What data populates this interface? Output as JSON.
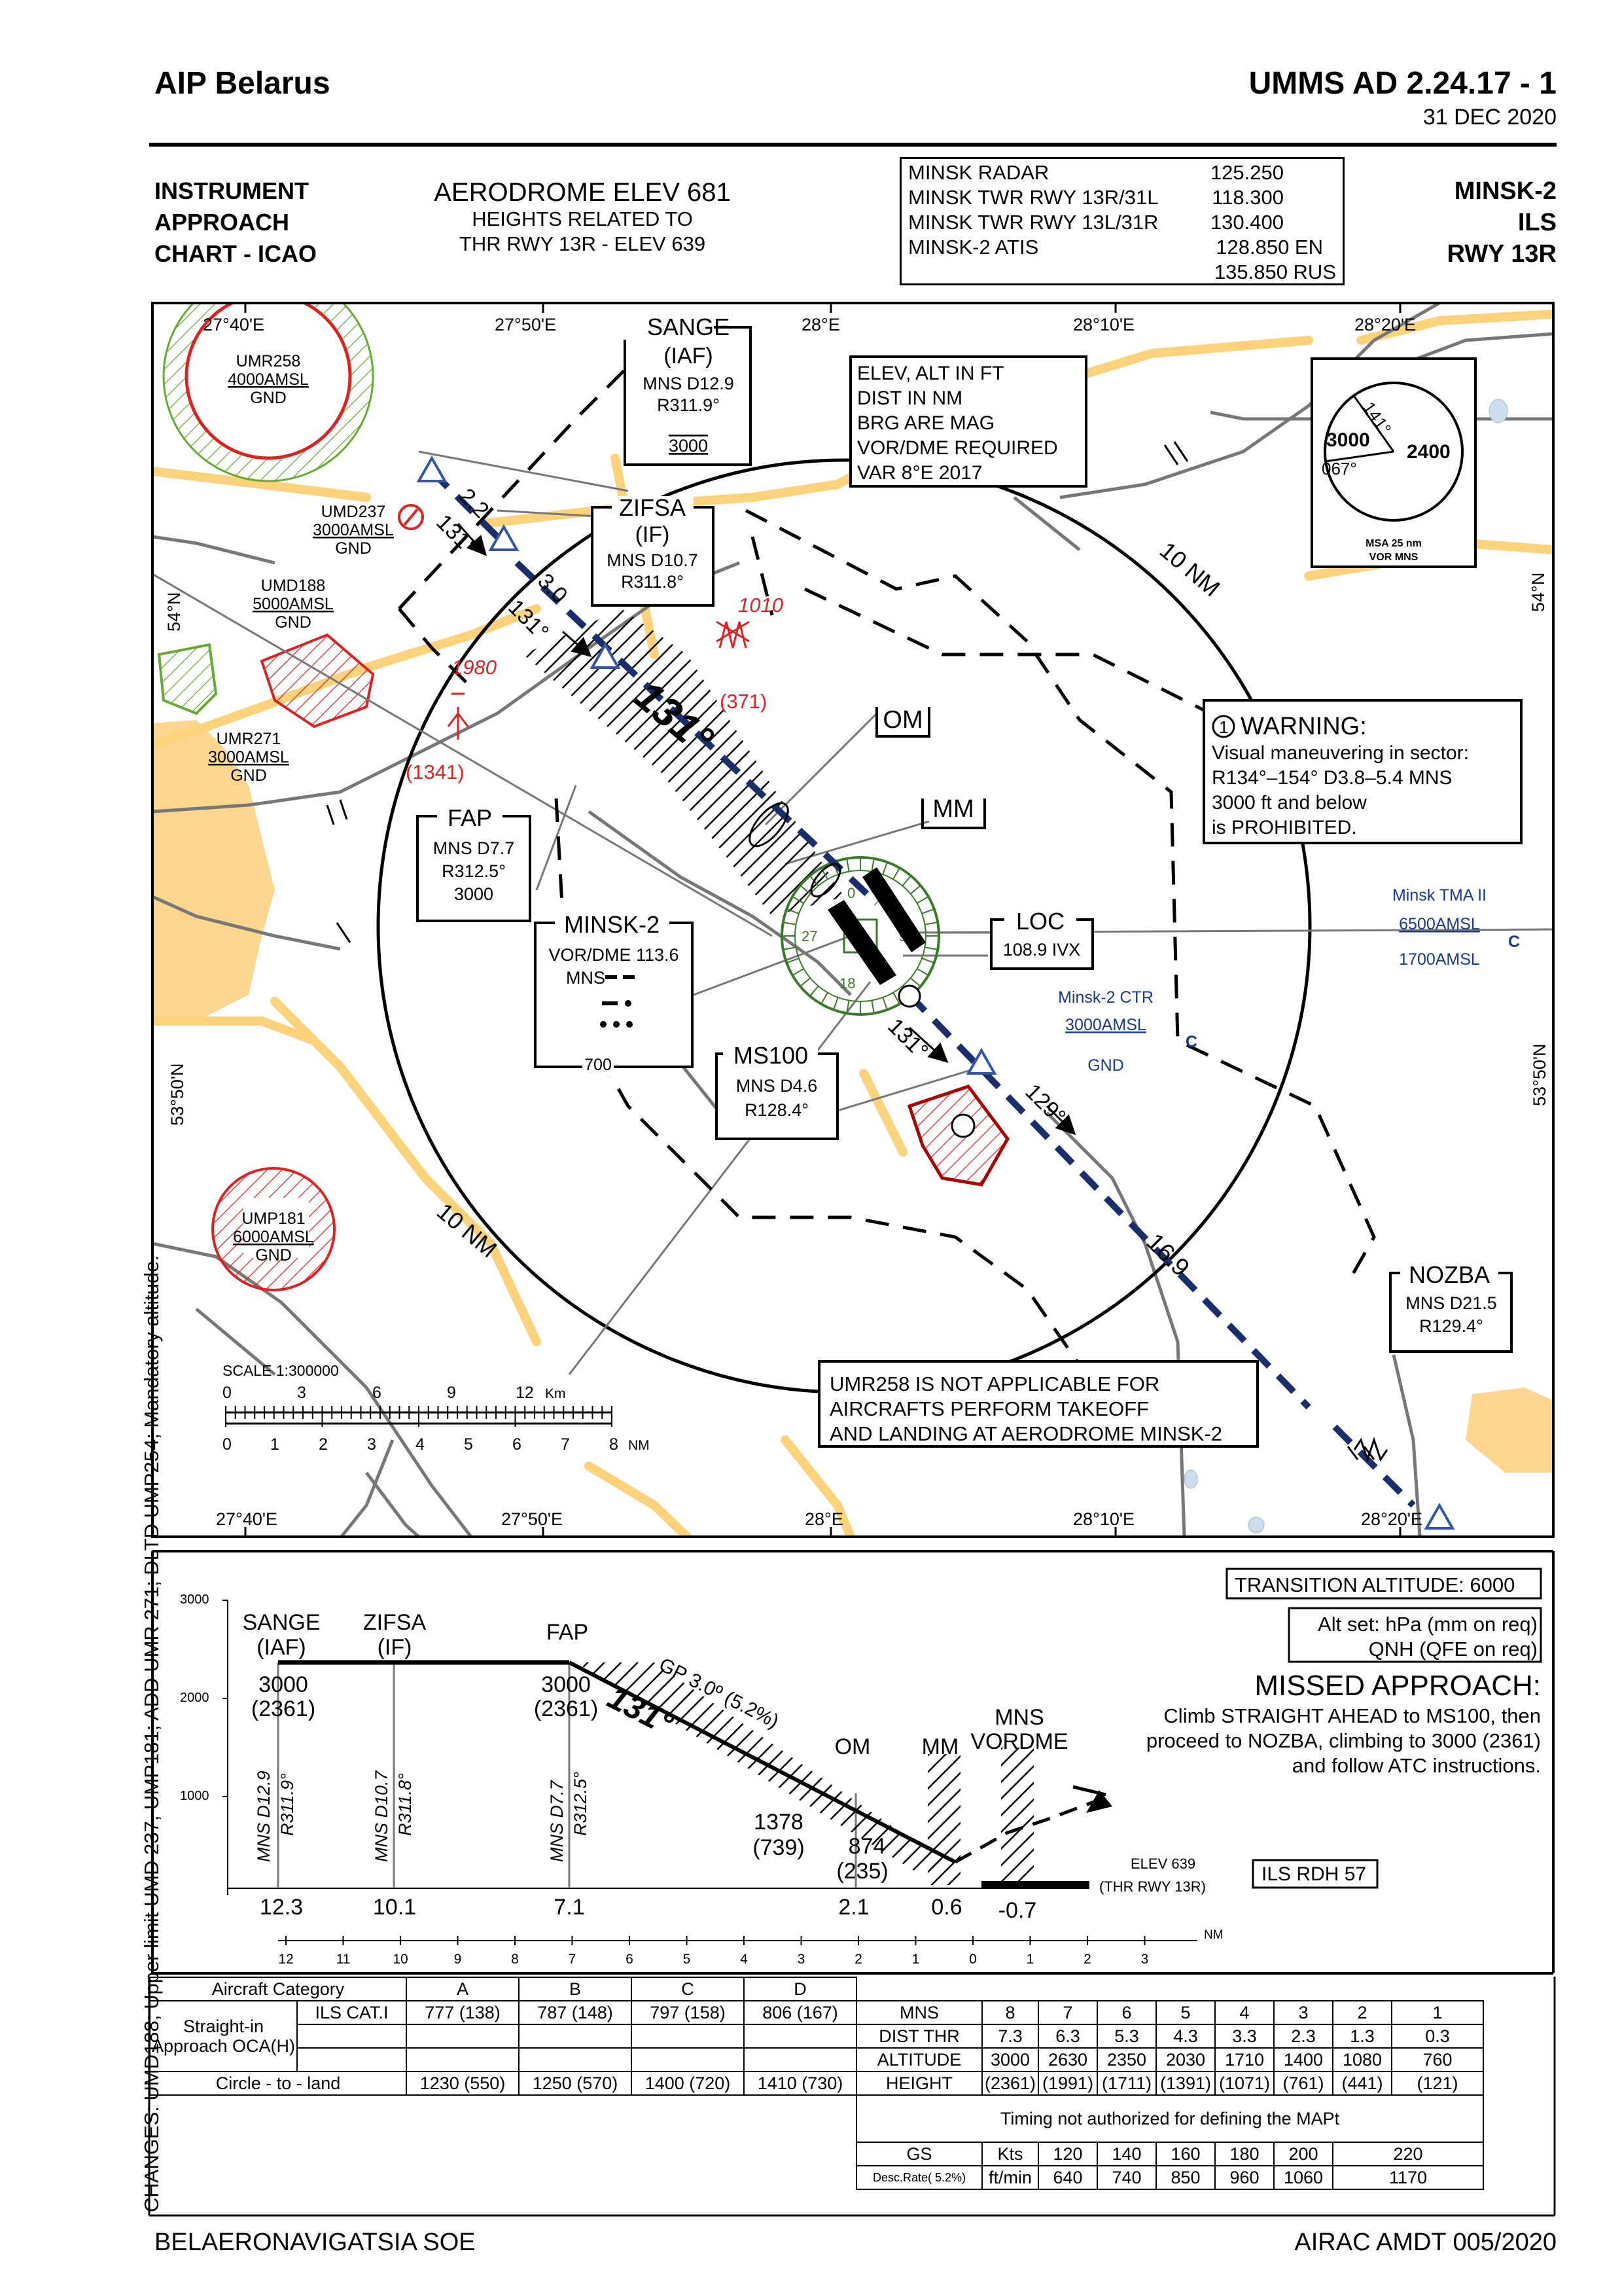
{
  "header": {
    "left_title": "AIP Belarus",
    "right_title": "UMMS AD 2.24.17 - 1",
    "date": "31 DEC 2020"
  },
  "title_block": {
    "chart_type": [
      "INSTRUMENT",
      "APPROACH",
      "CHART - ICAO"
    ],
    "aerodrome_elev": "AERODROME ELEV 681",
    "heights_note_1": "HEIGHTS RELATED TO",
    "heights_note_2": "THR RWY 13R - ELEV 639",
    "frequencies": [
      {
        "name": "MINSK  RADAR",
        "freq": "125.250"
      },
      {
        "name": "MINSK TWR RWY 13R/31L",
        "freq": "118.300"
      },
      {
        "name": "MINSK TWR RWY 13L/31R",
        "freq": "130.400"
      },
      {
        "name": "MINSK-2 ATIS",
        "freq": "128.850 EN"
      },
      {
        "name": "",
        "freq": "135.850 RUS"
      }
    ],
    "chart_id": [
      "MINSK-2",
      "ILS",
      "RWY 13R"
    ]
  },
  "plan": {
    "lon_labels": [
      "27°40'E",
      "27°50'E",
      "28°E",
      "28°10'E",
      "28°20'E"
    ],
    "lat_labels": [
      "54°N",
      "53°50'N"
    ],
    "notes_box": [
      "ELEV, ALT IN FT",
      "DIST IN NM",
      "BRG ARE MAG",
      "VOR/DME REQUIRED",
      "VAR 8°E 2017"
    ],
    "msa": {
      "bearing_1": "141°",
      "bearing_2": "067°",
      "alt_1": "3000",
      "alt_2": "2400",
      "label": "MSA 25 nm",
      "sub": "VOR MNS"
    },
    "sange": {
      "name": "SANGE",
      "role": "(IAF)",
      "dist": "MNS D12.9",
      "radial": "R311.9°",
      "alt": "3000"
    },
    "zifsa": {
      "name": "ZIFSA",
      "role": "(IF)",
      "dist": "MNS D10.7",
      "radial": "R311.8°"
    },
    "fap": {
      "name": "FAP",
      "dist": "MNS D7.7",
      "radial": "R312.5°",
      "alt": "3000"
    },
    "minsk2": {
      "name": "MINSK-2",
      "vor": "VOR/DME 113.6",
      "ident": "MNS",
      "alt": "700"
    },
    "ms100": {
      "name": "MS100",
      "dist": "MNS D4.6",
      "radial": "R128.4°"
    },
    "loc": {
      "name": "LOC",
      "freq": "108.9 IVX"
    },
    "om": "OM",
    "mm": "MM",
    "nozba": {
      "name": "NOZBA",
      "dist": "MNS D21.5",
      "radial": "R129.4°"
    },
    "warning": {
      "title": "WARNING:",
      "num": "1",
      "lines": [
        "Visual maneuvering in sector:",
        "R134°–154° D3.8–5.4 MNS",
        "3000 ft and below",
        "is PROHIBITED."
      ]
    },
    "umr258_note": [
      "UMR258 IS NOT APPLICABLE FOR",
      "AIRCRAFTS PERFORM TAKEOFF",
      "AND LANDING AT AERODROME MINSK-2"
    ],
    "areas": {
      "umr258": [
        "UMR258",
        "4000AMSL",
        "GND"
      ],
      "umd237": [
        "UMD237",
        "3000AMSL",
        "GND"
      ],
      "umd188": [
        "UMD188",
        "5000AMSL",
        "GND"
      ],
      "umr271": [
        "UMR271",
        "3000AMSL",
        "GND"
      ],
      "ump181": [
        "UMP181",
        "6000AMSL",
        "GND"
      ],
      "tma": [
        "Minsk TMA II",
        "6500AMSL",
        "1700AMSL"
      ],
      "ctr": [
        "Minsk-2 CTR",
        "3000AMSL",
        "GND"
      ]
    },
    "obstacles": {
      "o1": "1010",
      "o1h": "(371)",
      "o2": "1980",
      "o2h": "(1341)"
    },
    "tracks": {
      "t1": "131°",
      "d1": "2.2",
      "t2": "131°",
      "d2": "3.0",
      "final": "131°",
      "t3": "131°",
      "t4": "129°",
      "d4": "16.9"
    },
    "ring_label": "10 NM",
    "scale": {
      "title": "SCALE 1:300000",
      "km": [
        "0",
        "3",
        "6",
        "9",
        "12"
      ],
      "km_unit": "Km",
      "nm": [
        "0",
        "1",
        "2",
        "3",
        "4",
        "5",
        "6",
        "7",
        "8"
      ],
      "nm_unit": "NM"
    },
    "vor_marks": [
      "0",
      "9",
      "18",
      "27"
    ]
  },
  "profile": {
    "alts": [
      "3000",
      "2000",
      "1000"
    ],
    "sange": [
      "SANGE",
      "(IAF)"
    ],
    "zifsa": [
      "ZIFSA",
      "(IF)"
    ],
    "fap": "FAP",
    "alt_3000": [
      "3000",
      "(2361)"
    ],
    "alt_3000b": [
      "3000",
      "(2361)"
    ],
    "vert_sange": [
      "MNS D12.9",
      "R311.9°"
    ],
    "vert_zifsa": [
      "MNS D10.7",
      "R311.8°"
    ],
    "vert_fap": [
      "MNS D7.7",
      "R312.5°"
    ],
    "gp": "GP 3.0º (5.2%)",
    "course": "131°",
    "om": "OM",
    "mm": "MM",
    "vordme": [
      "MNS",
      "VORDME"
    ],
    "alt_1378": [
      "1378",
      "(739)"
    ],
    "alt_874": [
      "874",
      "(235)"
    ],
    "dists": [
      "12.3",
      "10.1",
      "7.1",
      "2.1",
      "0.6",
      "-0.7"
    ],
    "elev": [
      "ELEV  639",
      "(THR RWY 13R)"
    ],
    "rdh": "ILS RDH 57",
    "trans": "TRANSITION ALTITUDE: 6000",
    "altset": [
      "Alt set: hPa (mm on req)",
      "QNH (QFE on req)"
    ],
    "missed_title": "MISSED APPROACH:",
    "missed": [
      "Climb  STRAIGHT  AHEAD to MS100,  then",
      "proceed to NOZBA, climbing to 3000 (2361)",
      "and follow  ATC instructions."
    ],
    "nm_axis": [
      "12",
      "11",
      "10",
      "9",
      "8",
      "7",
      "6",
      "5",
      "4",
      "3",
      "2",
      "1",
      "0",
      "1",
      "2",
      "3"
    ],
    "nm_unit": "NM"
  },
  "minima": {
    "cat_header": "Aircraft Category",
    "cats": [
      "A",
      "B",
      "C",
      "D"
    ],
    "straight_in": "Straight-in Approach OCA(H)",
    "ils": "ILS CAT.I",
    "ils_vals": [
      "777 (138)",
      "787 (148)",
      "797 (158)",
      "806 (167)"
    ],
    "circle": "Circle - to - land",
    "circle_vals": [
      "1230 (550)",
      "1250 (570)",
      "1400 (720)",
      "1410 (730)"
    ],
    "dist_rows": [
      {
        "label": "MNS",
        "vals": [
          "8",
          "7",
          "6",
          "5",
          "4",
          "3",
          "2",
          "1"
        ]
      },
      {
        "label": "DIST THR",
        "vals": [
          "7.3",
          "6.3",
          "5.3",
          "4.3",
          "3.3",
          "2.3",
          "1.3",
          "0.3"
        ]
      },
      {
        "label": "ALTITUDE",
        "vals": [
          "3000",
          "2630",
          "2350",
          "2030",
          "1710",
          "1400",
          "1080",
          "760"
        ]
      },
      {
        "label": "HEIGHT",
        "vals": [
          "(2361)",
          "(1991)",
          "(1711)",
          "(1391)",
          "(1071)",
          "(761)",
          "(441)",
          "(121)"
        ]
      }
    ],
    "timing_note": "Timing not authorized for defining the MAPt",
    "gs_label": "GS",
    "kts": "Kts",
    "gs_vals": [
      "120",
      "140",
      "160",
      "180",
      "200",
      "220"
    ],
    "desc_label": "Desc.Rate( 5.2%)",
    "ftmin": "ft/min",
    "desc_vals": [
      "640",
      "740",
      "850",
      "960",
      "1060",
      "1170"
    ]
  },
  "footer": {
    "left": "BELAERONAVIGATSIA SOE",
    "right": "AIRAC AMDT 005/2020",
    "changes": "CHANGES: UMD188; Upper limit UMD 237, UMP181; ADD UMR 271; DLTD UMP254; Mandatory altitude."
  }
}
